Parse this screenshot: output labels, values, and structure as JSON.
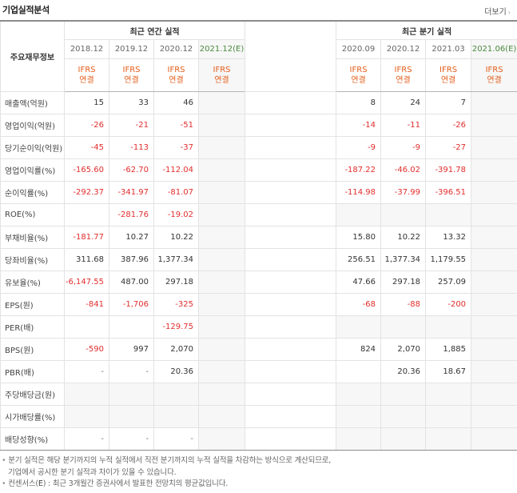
{
  "header": {
    "title": "기업실적분석",
    "more": "더보기",
    "more_arrow": "›"
  },
  "table": {
    "row_header": "주요재무정보",
    "annual_group": "최근 연간 실적",
    "quarter_group": "최근 분기 실적",
    "annual_periods": [
      "2018.12",
      "2019.12",
      "2020.12",
      "2021.12(E)"
    ],
    "quarter_periods": [
      "2020.09",
      "2020.12",
      "2021.03",
      "2021.06(E)"
    ],
    "ifrs_label_1": "IFRS",
    "ifrs_label_2": "연결",
    "rows": [
      {
        "label": "매출액(억원)",
        "annual": [
          "15",
          "33",
          "46",
          ""
        ],
        "quarter": [
          "8",
          "24",
          "7",
          ""
        ]
      },
      {
        "label": "영업이익(억원)",
        "annual": [
          "-26",
          "-21",
          "-51",
          ""
        ],
        "quarter": [
          "-14",
          "-11",
          "-26",
          ""
        ]
      },
      {
        "label": "당기순이익(억원)",
        "annual": [
          "-45",
          "-113",
          "-37",
          ""
        ],
        "quarter": [
          "-9",
          "-9",
          "-27",
          ""
        ]
      },
      {
        "label": "영업이익률(%)",
        "annual": [
          "-165.60",
          "-62.70",
          "-112.04",
          ""
        ],
        "quarter": [
          "-187.22",
          "-46.02",
          "-391.78",
          ""
        ]
      },
      {
        "label": "순이익률(%)",
        "annual": [
          "-292.37",
          "-341.97",
          "-81.07",
          ""
        ],
        "quarter": [
          "-114.98",
          "-37.99",
          "-396.51",
          ""
        ]
      },
      {
        "label": "ROE(%)",
        "annual": [
          "",
          "-281.76",
          "-19.02",
          ""
        ],
        "quarter": [
          "",
          "",
          "",
          ""
        ]
      },
      {
        "label": "부채비율(%)",
        "annual": [
          "-181.77",
          "10.27",
          "10.22",
          ""
        ],
        "quarter": [
          "15.80",
          "10.22",
          "13.32",
          ""
        ]
      },
      {
        "label": "당좌비율(%)",
        "annual": [
          "311.68",
          "387.96",
          "1,377.34",
          ""
        ],
        "quarter": [
          "256.51",
          "1,377.34",
          "1,179.55",
          ""
        ]
      },
      {
        "label": "유보율(%)",
        "annual": [
          "-6,147.55",
          "487.00",
          "297.18",
          ""
        ],
        "quarter": [
          "47.66",
          "297.18",
          "257.09",
          ""
        ]
      },
      {
        "label": "EPS(원)",
        "annual": [
          "-841",
          "-1,706",
          "-325",
          ""
        ],
        "quarter": [
          "-68",
          "-88",
          "-200",
          ""
        ]
      },
      {
        "label": "PER(배)",
        "annual": [
          "",
          "",
          "-129.75",
          ""
        ],
        "quarter": [
          "",
          "",
          "",
          ""
        ]
      },
      {
        "label": "BPS(원)",
        "annual": [
          "-590",
          "997",
          "2,070",
          ""
        ],
        "quarter": [
          "824",
          "2,070",
          "1,885",
          ""
        ]
      },
      {
        "label": "PBR(배)",
        "annual": [
          "-",
          "-",
          "20.36",
          ""
        ],
        "quarter": [
          "",
          "20.36",
          "18.67",
          ""
        ]
      },
      {
        "label": "주당배당금(원)",
        "annual": [
          "",
          "",
          "",
          ""
        ],
        "quarter": [
          "",
          "",
          "",
          ""
        ]
      },
      {
        "label": "시가배당률(%)",
        "annual": [
          "",
          "",
          "",
          ""
        ],
        "quarter": [
          "",
          "",
          "",
          ""
        ]
      },
      {
        "label": "배당성향(%)",
        "annual": [
          "-",
          "-",
          "-",
          ""
        ],
        "quarter": [
          "",
          "",
          "",
          ""
        ]
      }
    ]
  },
  "footnotes": {
    "bullet": "•",
    "line1": "분기 실적은 해당 분기까지의 누적 실적에서 직전 분기까지의 누적 실적을 차감하는 방식으로 계산되므로,",
    "line2": "기업에서 공시한 분기 실적과 차이가 있을 수 있습니다.",
    "line3_prefix": "컨센서스(",
    "line3_e": "E",
    "line3_suffix": ") : 최근 3개월간 증권사에서 발표한 전망치의 평균값입니다."
  },
  "colors": {
    "negative": "#e22d2d",
    "ifrs": "#e45d1a",
    "estimate": "#4a8a3e",
    "empty_cell": "#f7f7f7"
  }
}
